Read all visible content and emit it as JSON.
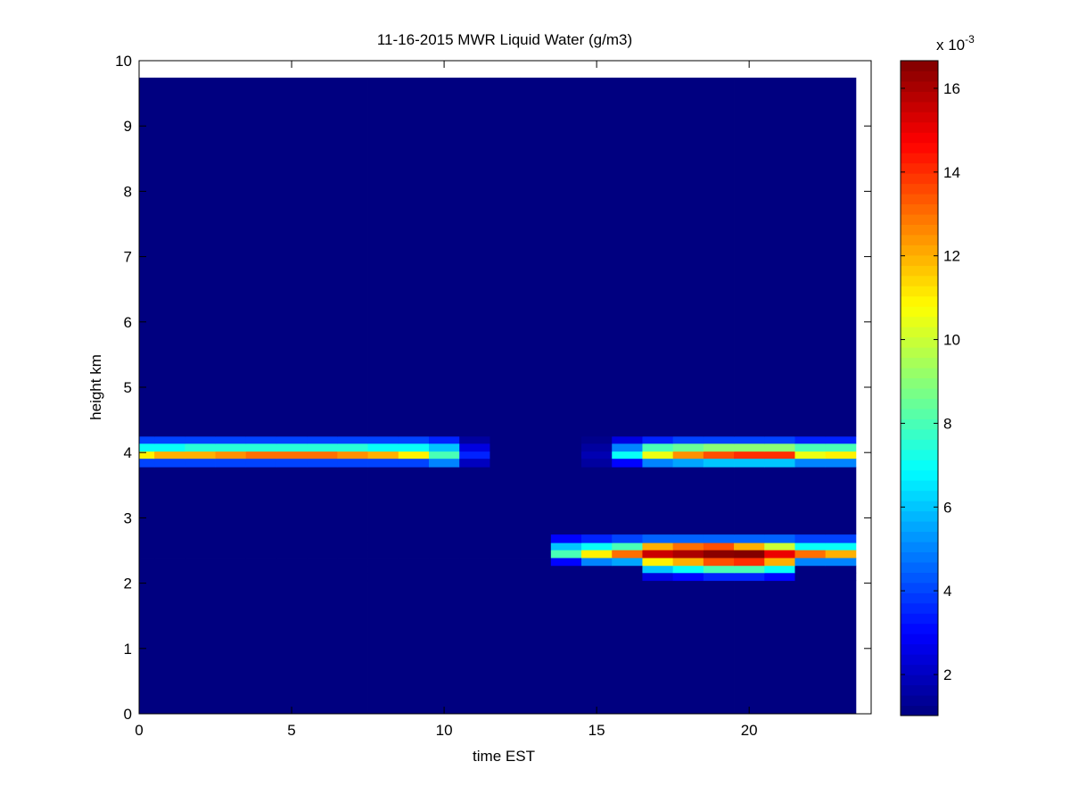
{
  "chart_data": {
    "type": "heatmap",
    "title": "11-16-2015 MWR Liquid Water (g/m3)",
    "x_label": "time EST",
    "y_label": "height km",
    "colorbar_multiplier": {
      "base": "x 10",
      "exponent": "-3"
    },
    "colormap": "jet",
    "x_edges": [
      0,
      0.5,
      1.5,
      2.5,
      3.5,
      4.5,
      5.5,
      6.5,
      7.5,
      8.5,
      9.5,
      10.5,
      11.5,
      12.5,
      13.5,
      14.5,
      15.5,
      16.5,
      17.5,
      18.5,
      19.5,
      20.5,
      21.5,
      22.5,
      23.5
    ],
    "y_edges": [
      0,
      2.04,
      2.16,
      2.27,
      2.39,
      2.51,
      2.62,
      2.75,
      3.78,
      3.91,
      4.02,
      4.14,
      4.25,
      9.74
    ],
    "values": [
      [
        1,
        1,
        1,
        1,
        1,
        1,
        1,
        1,
        1,
        1,
        1,
        1,
        1,
        1,
        1,
        1,
        1,
        1,
        1,
        1,
        1,
        1,
        1,
        1
      ],
      [
        1,
        1,
        1,
        1,
        1,
        1,
        1,
        1,
        1,
        1,
        1,
        1,
        1,
        1,
        1,
        1,
        1,
        2.5,
        3,
        3.5,
        3.5,
        3,
        1,
        1
      ],
      [
        1,
        1,
        1,
        1,
        1,
        1,
        1,
        1,
        1,
        1,
        1,
        1,
        1,
        1,
        1,
        1,
        1,
        6,
        7,
        8,
        8,
        7,
        1,
        1
      ],
      [
        1,
        1,
        1,
        1,
        1,
        1,
        1,
        1,
        1,
        1,
        1,
        1,
        1,
        1,
        3,
        5,
        5.5,
        11,
        12,
        13.5,
        14,
        12,
        5,
        5
      ],
      [
        1,
        1,
        1,
        1,
        1,
        1,
        1,
        1,
        1,
        1,
        1,
        1,
        1,
        1,
        8,
        11,
        13,
        15.5,
        16,
        16.5,
        16.6,
        15,
        13,
        12
      ],
      [
        1,
        1,
        1,
        1,
        1,
        1,
        1,
        1,
        1,
        1,
        1,
        1,
        1,
        1,
        6,
        7,
        8,
        12,
        13,
        13.5,
        12,
        10,
        7,
        7
      ],
      [
        1,
        1,
        1,
        1,
        1,
        1,
        1,
        1,
        1,
        1,
        1,
        1,
        1,
        1,
        3,
        3.5,
        4,
        4.5,
        4.5,
        4.5,
        4.5,
        4.5,
        4,
        4
      ],
      [
        1,
        1,
        1,
        1,
        1,
        1,
        1,
        1,
        1,
        1,
        1,
        1,
        1,
        1,
        1,
        1,
        1,
        1,
        1,
        1,
        1,
        1,
        1,
        1
      ],
      [
        4,
        4,
        4,
        4,
        4,
        4,
        4,
        4,
        4,
        4,
        5,
        2,
        1,
        1,
        1,
        1.5,
        3,
        5,
        5.5,
        6,
        6,
        6,
        5,
        5
      ],
      [
        11,
        12,
        12,
        12.5,
        13,
        13,
        13,
        12.5,
        12,
        11,
        8,
        3.5,
        1,
        1,
        1,
        1.8,
        7,
        10.5,
        12.5,
        13.5,
        14,
        14,
        10.5,
        11
      ],
      [
        7,
        7,
        7.5,
        7.5,
        7.5,
        7.5,
        7.5,
        7.5,
        7,
        7,
        6,
        2.5,
        1,
        1,
        1,
        1.5,
        5,
        8,
        8.5,
        9,
        9,
        9,
        8,
        8
      ],
      [
        4,
        4,
        4,
        4,
        4,
        4,
        4,
        4,
        4,
        4,
        3.5,
        1.5,
        1,
        1,
        1,
        1.2,
        2.5,
        3.5,
        4,
        4,
        4,
        4,
        3.5,
        3.5
      ],
      [
        1,
        1,
        1,
        1,
        1,
        1,
        1,
        1,
        1,
        1,
        1,
        1,
        1,
        1,
        1,
        1,
        1,
        1,
        1,
        1,
        1,
        1,
        1,
        1
      ]
    ],
    "xlim": [
      0,
      24
    ],
    "ylim": [
      0,
      10
    ],
    "xticks": [
      0,
      5,
      10,
      15,
      20
    ],
    "yticks": [
      0,
      1,
      2,
      3,
      4,
      5,
      6,
      7,
      8,
      9,
      10
    ],
    "clim": [
      1.02,
      16.66
    ],
    "cticks": [
      2,
      4,
      6,
      8,
      10,
      12,
      14,
      16
    ]
  }
}
